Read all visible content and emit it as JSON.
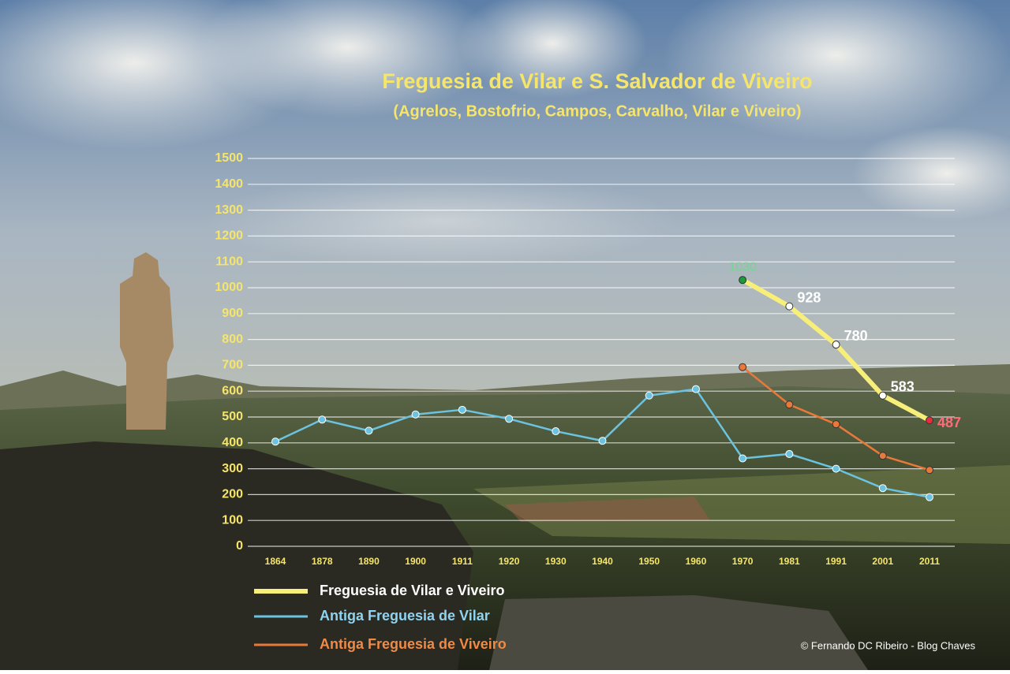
{
  "chart_data": {
    "type": "line",
    "title": "Freguesia de Vilar e S. Salvador de Viveiro",
    "subtitle": "(Agrelos, Bostofrio, Campos, Carvalho, Vilar e Viveiro)",
    "categories": [
      "1864",
      "1878",
      "1890",
      "1900",
      "1911",
      "1920",
      "1930",
      "1940",
      "1950",
      "1960",
      "1970",
      "1981",
      "1991",
      "2001",
      "2011"
    ],
    "ylim": [
      0,
      1500
    ],
    "yticks": [
      0,
      100,
      200,
      300,
      400,
      500,
      600,
      700,
      800,
      900,
      1000,
      1100,
      1200,
      1300,
      1400,
      1500
    ],
    "grid": true,
    "legend": "bottom-left",
    "series": [
      {
        "name": "Freguesia de Vilar e Viveiro",
        "color": "#f7ef7a",
        "text_color": "#ffffff",
        "values": [
          null,
          null,
          null,
          null,
          null,
          null,
          null,
          null,
          null,
          null,
          1030,
          928,
          780,
          583,
          487
        ],
        "point_colors": [
          null,
          null,
          null,
          null,
          null,
          null,
          null,
          null,
          null,
          null,
          "#1a9a3a",
          "#ffffff",
          "#ffffff",
          "#ffffff",
          "#e03040"
        ],
        "label_colors": [
          null,
          null,
          null,
          null,
          null,
          null,
          null,
          null,
          null,
          null,
          "#6fd98a",
          "#ffffff",
          "#ffffff",
          "#ffffff",
          "#ff6b7a"
        ]
      },
      {
        "name": "Antiga Freguesia de Vilar",
        "color": "#6cc3e0",
        "text_color": "#8fd3f0",
        "values": [
          405,
          490,
          447,
          510,
          528,
          493,
          445,
          408,
          583,
          608,
          340,
          357,
          300,
          225,
          190
        ]
      },
      {
        "name": "Antiga Freguesia de Viveiro",
        "color": "#e8793a",
        "text_color": "#f08a45",
        "values": [
          null,
          null,
          null,
          null,
          null,
          null,
          null,
          null,
          null,
          null,
          693,
          548,
          472,
          350,
          295
        ]
      }
    ],
    "credit": "© Fernando DC Ribeiro - Blog Chaves"
  }
}
